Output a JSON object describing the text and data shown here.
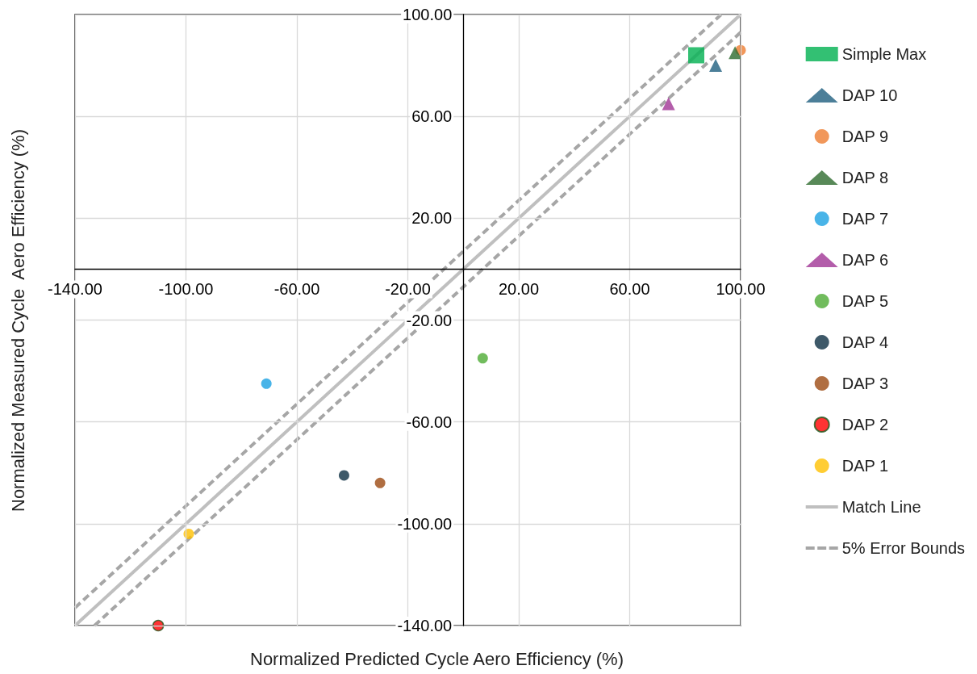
{
  "chart_data": {
    "type": "scatter",
    "xlabel": "Normalized Predicted Cycle Aero Efficiency (%)",
    "ylabel": "Normalized Measured Cycle  Aero Efficiency (%)",
    "xlim": [
      -140,
      100
    ],
    "ylim": [
      -140,
      100
    ],
    "xticks": [
      {
        "value": -140,
        "label": "-140.00"
      },
      {
        "value": -100,
        "label": "-100.00"
      },
      {
        "value": -60,
        "label": "-60.00"
      },
      {
        "value": -20,
        "label": "-20.00"
      },
      {
        "value": 20,
        "label": "20.00"
      },
      {
        "value": 60,
        "label": "60.00"
      },
      {
        "value": 100,
        "label": "100.00"
      }
    ],
    "yticks": [
      {
        "value": -140,
        "label": "-140.00"
      },
      {
        "value": -100,
        "label": "-100.00"
      },
      {
        "value": -60,
        "label": "-60.00"
      },
      {
        "value": -20,
        "label": "-20.00"
      },
      {
        "value": 20,
        "label": "20.00"
      },
      {
        "value": 60,
        "label": "60.00"
      },
      {
        "value": 100,
        "label": "100.00"
      }
    ],
    "grid": true,
    "legend": "right",
    "series": [
      {
        "name": "Simple Max",
        "color": "#00b050",
        "marker": "square",
        "x": [
          84
        ],
        "values": [
          84
        ]
      },
      {
        "name": "DAP 10",
        "color": "#1f5f80",
        "marker": "triangle",
        "x": [
          91
        ],
        "values": [
          80
        ]
      },
      {
        "name": "DAP 9",
        "color": "#ed7d31",
        "marker": "circle",
        "x": [
          100
        ],
        "values": [
          86
        ]
      },
      {
        "name": "DAP 8",
        "color": "#2e6b2e",
        "marker": "triangle",
        "x": [
          98
        ],
        "values": [
          85
        ]
      },
      {
        "name": "DAP 7",
        "color": "#1ba1e2",
        "marker": "circle",
        "x": [
          -71
        ],
        "values": [
          -45
        ]
      },
      {
        "name": "DAP 6",
        "color": "#a03595",
        "marker": "triangle",
        "x": [
          74
        ],
        "values": [
          65
        ]
      },
      {
        "name": "DAP 5",
        "color": "#4eab35",
        "marker": "circle",
        "x": [
          7
        ],
        "values": [
          -35
        ]
      },
      {
        "name": "DAP 4",
        "color": "#0e2f44",
        "marker": "circle",
        "x": [
          -43
        ],
        "values": [
          -81
        ]
      },
      {
        "name": "DAP 3",
        "color": "#9c4a12",
        "marker": "circle",
        "x": [
          -30
        ],
        "values": [
          -84
        ]
      },
      {
        "name": "DAP 2",
        "color": "#ff0000",
        "marker": "circle",
        "x": [
          -110
        ],
        "values": [
          -140
        ]
      },
      {
        "name": "DAP 1",
        "color": "#ffc000",
        "marker": "circle",
        "x": [
          -99
        ],
        "values": [
          -104
        ]
      },
      {
        "name": "Match Line",
        "type": "line",
        "color": "#bfbfbf",
        "line_style": "solid",
        "marker": "none",
        "x": [
          -140,
          100
        ],
        "values": [
          -140,
          100
        ]
      },
      {
        "name": "5% Error Bounds",
        "type": "line",
        "color": "#a6a6a6",
        "line_style": "dashed",
        "marker": "none",
        "x": [
          -140,
          93,
          null,
          -133,
          100
        ],
        "values": [
          -133,
          100,
          null,
          -140,
          93
        ]
      }
    ]
  }
}
